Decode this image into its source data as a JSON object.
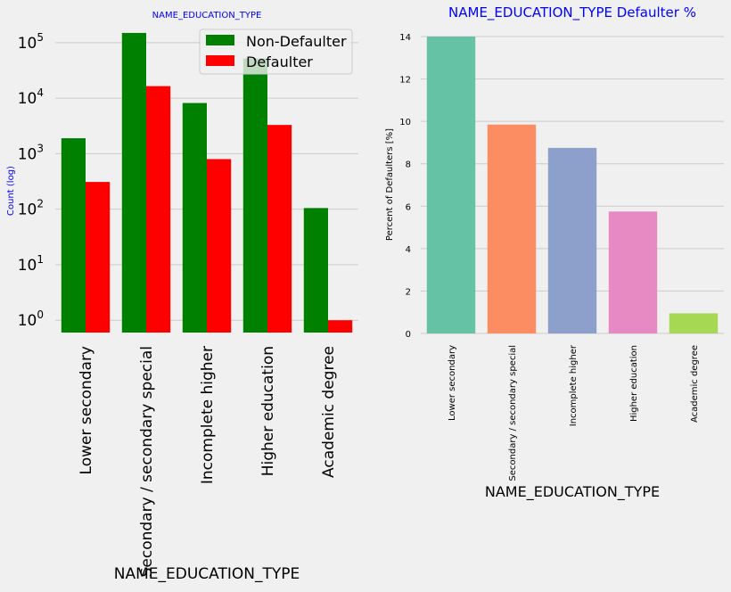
{
  "chart_data": [
    {
      "type": "bar",
      "title": "NAME_EDUCATION_TYPE",
      "xlabel": "NAME_EDUCATION_TYPE",
      "ylabel": "Count (log)",
      "yscale": "log",
      "ylim": [
        0.6,
        180000
      ],
      "yticks": [
        1,
        10,
        100,
        1000,
        10000,
        100000
      ],
      "ytick_labels": [
        {
          "base": "10",
          "exp": "0"
        },
        {
          "base": "10",
          "exp": "1"
        },
        {
          "base": "10",
          "exp": "2"
        },
        {
          "base": "10",
          "exp": "3"
        },
        {
          "base": "10",
          "exp": "4"
        },
        {
          "base": "10",
          "exp": "5"
        }
      ],
      "categories": [
        "Lower secondary",
        "Secondary / secondary special",
        "Incomplete higher",
        "Higher education",
        "Academic degree"
      ],
      "series": [
        {
          "name": "Non-Defaulter",
          "color": "#008000",
          "values": [
            1900,
            150000,
            8200,
            52000,
            105
          ]
        },
        {
          "name": "Defaulter",
          "color": "#ff0000",
          "values": [
            310,
            16500,
            800,
            3300,
            1
          ]
        }
      ],
      "legend": "top-right",
      "grid": true
    },
    {
      "type": "bar",
      "title": "NAME_EDUCATION_TYPE Defaulter %",
      "xlabel": "NAME_EDUCATION_TYPE",
      "ylabel": "Percent of Defaulters [%]",
      "ylim": [
        0,
        14
      ],
      "yticks": [
        0,
        2,
        4,
        6,
        8,
        10,
        12,
        14
      ],
      "categories": [
        "Lower secondary",
        "Secondary / secondary special",
        "Incomplete higher",
        "Higher education",
        "Academic degree"
      ],
      "values": [
        14.0,
        9.85,
        8.75,
        5.75,
        0.95
      ],
      "colors": [
        "#66c2a5",
        "#fc8d62",
        "#8da0cb",
        "#e78ac3",
        "#a6d854"
      ],
      "grid": true
    }
  ]
}
